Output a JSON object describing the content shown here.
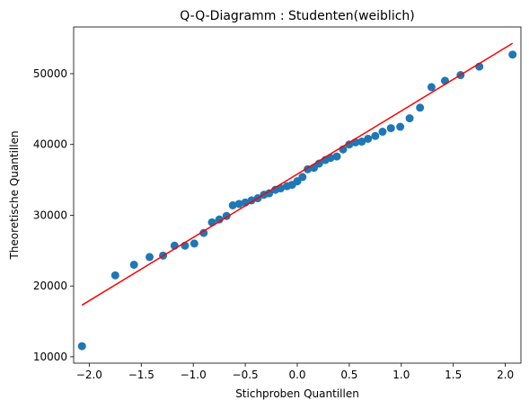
{
  "chart_data": {
    "type": "scatter",
    "title": "Q-Q-Diagramm : Studenten(weiblich)",
    "x_label": "Stichproben Quantillen",
    "y_label": "Theoretische Quantillen",
    "color": "#1f77b4",
    "x": [
      -2.07,
      -1.75,
      -1.57,
      -1.42,
      -1.29,
      -1.18,
      -1.08,
      -0.99,
      -0.9,
      -0.82,
      -0.75,
      -0.68,
      -0.62,
      -0.56,
      -0.5,
      -0.44,
      -0.38,
      -0.32,
      -0.27,
      -0.21,
      -0.16,
      -0.1,
      -0.05,
      0.0,
      0.05,
      0.1,
      0.16,
      0.21,
      0.27,
      0.32,
      0.38,
      0.44,
      0.5,
      0.56,
      0.62,
      0.68,
      0.75,
      0.82,
      0.9,
      0.99,
      1.08,
      1.18,
      1.29,
      1.42,
      1.57,
      1.75,
      2.07
    ],
    "values": [
      11500,
      21500,
      23000,
      24100,
      24300,
      25700,
      25700,
      26000,
      27500,
      29000,
      29400,
      29900,
      31400,
      31600,
      31800,
      32100,
      32400,
      32900,
      33100,
      33600,
      33800,
      34100,
      34300,
      34800,
      35400,
      36500,
      36700,
      37300,
      37800,
      38100,
      38300,
      39300,
      40000,
      40300,
      40400,
      40800,
      41200,
      41800,
      42300,
      42500,
      43700,
      45200,
      48100,
      49000,
      49800,
      51000,
      52700
    ],
    "fit_line": {
      "color": "#ff0000",
      "x": [
        -2.07,
        2.07
      ],
      "values": [
        17300,
        54300
      ]
    },
    "xlim": [
      -2.15,
      2.15
    ],
    "ylim": [
      9100,
      56600
    ],
    "xticks": [
      {
        "value": -2.0,
        "label": "−2.0"
      },
      {
        "value": -1.5,
        "label": "−1.5"
      },
      {
        "value": -1.0,
        "label": "−1.0"
      },
      {
        "value": -0.5,
        "label": "−0.5"
      },
      {
        "value": 0.0,
        "label": "0.0"
      },
      {
        "value": 0.5,
        "label": "0.5"
      },
      {
        "value": 1.0,
        "label": "1.0"
      },
      {
        "value": 1.5,
        "label": "1.5"
      },
      {
        "value": 2.0,
        "label": "2.0"
      }
    ],
    "yticks": [
      10000,
      20000,
      30000,
      40000,
      50000
    ]
  }
}
